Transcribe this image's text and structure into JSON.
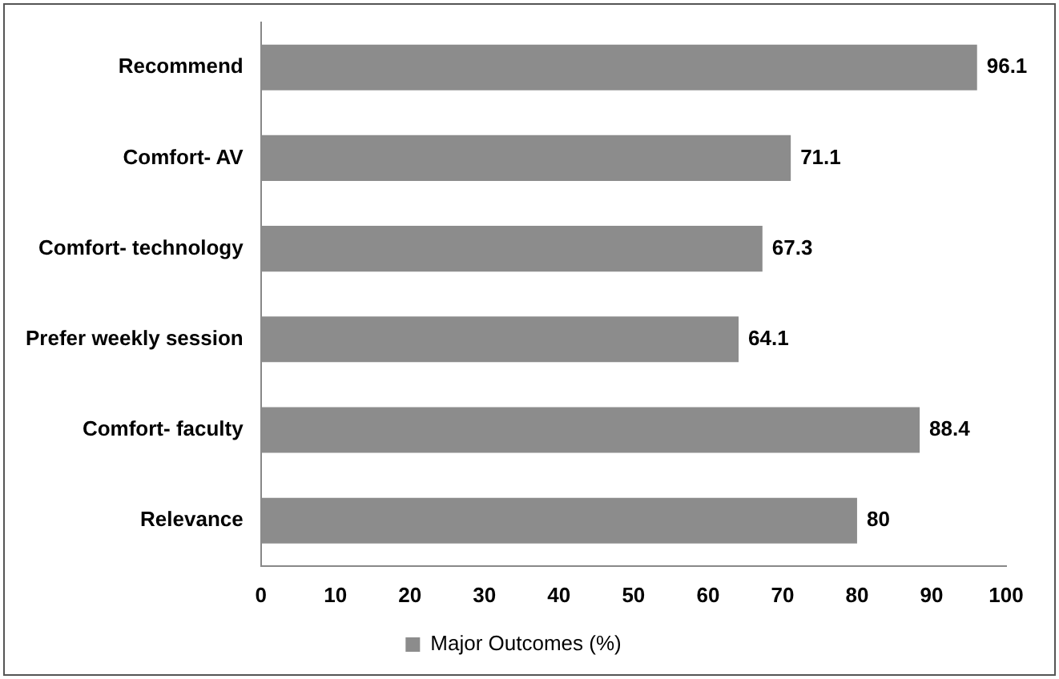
{
  "chart_data": {
    "type": "bar",
    "orientation": "horizontal",
    "categories": [
      "Recommend",
      "Comfort- AV",
      "Comfort- technology",
      "Prefer weekly session",
      "Comfort- faculty",
      "Relevance"
    ],
    "series": [
      {
        "name": "Major Outcomes (%)",
        "color": "#8c8c8c",
        "values": [
          96.1,
          71.1,
          67.3,
          64.1,
          88.4,
          80
        ]
      }
    ],
    "xlim": [
      0,
      100
    ],
    "xticks": [
      0,
      10,
      20,
      30,
      40,
      50,
      60,
      70,
      80,
      90,
      100
    ],
    "grid": false,
    "legend": "bottom",
    "data_labels": true
  }
}
